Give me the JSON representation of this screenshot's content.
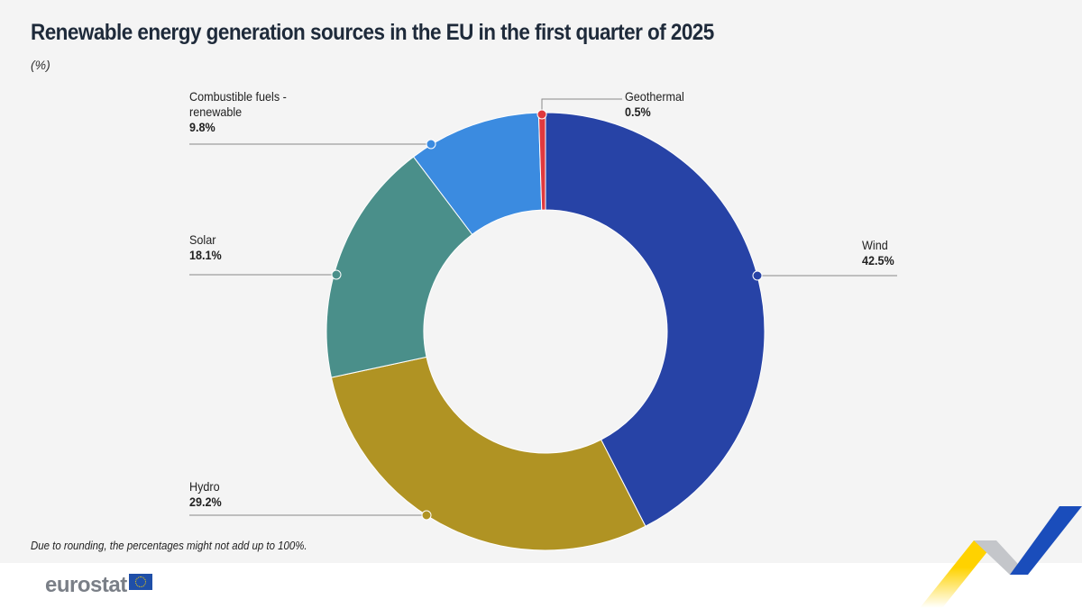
{
  "title": "Renewable energy generation sources in the EU in the first quarter of  2025",
  "unit": "(%)",
  "note": "Due to rounding, the percentages might not add up to 100%.",
  "logo": "eurostat",
  "chart_data": {
    "type": "pie",
    "variant": "donut",
    "start": "top, clockwise",
    "slices": [
      {
        "label": "Wind",
        "value": 42.5,
        "display": "42.5%",
        "color": "#2743a6"
      },
      {
        "label": "Hydro",
        "value": 29.2,
        "display": "29.2%",
        "color": "#b09323"
      },
      {
        "label": "Solar",
        "value": 18.1,
        "display": "18.1%",
        "color": "#4a8f8a"
      },
      {
        "label": "Combustible fuels - renewable",
        "value": 9.8,
        "display": "9.8%",
        "color": "#3b8be0"
      },
      {
        "label": "Geothermal",
        "value": 0.5,
        "display": "0.5%",
        "color": "#e0393e"
      }
    ]
  }
}
